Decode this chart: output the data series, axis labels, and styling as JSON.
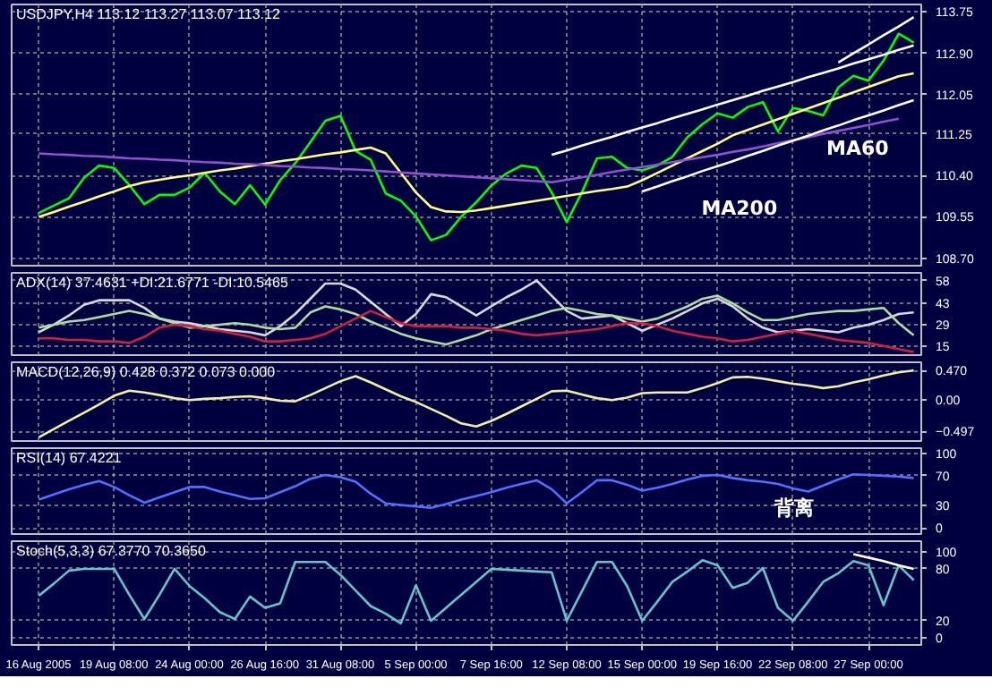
{
  "chart_data": [
    {
      "type": "line",
      "title": "USDJPY,H4 113.12 113.27 113.07 113.12",
      "ylim": [
        108.55,
        113.9
      ],
      "tick_labels": "y",
      "grid": true,
      "yticks": [
        {
          "value": 108.7,
          "label": "108.70"
        },
        109.55,
        {
          "value": 110.4,
          "label": "110.40"
        },
        111.25,
        112.05,
        {
          "value": 112.9,
          "label": "112.90"
        },
        113.75
      ],
      "series": [
        {
          "color": "#00ff00",
          "values": [
            109.63,
            109.78,
            109.93,
            110.35,
            110.6,
            110.55,
            110.2,
            109.81,
            110.0,
            110.0,
            110.15,
            110.45,
            110.07,
            109.81,
            110.2,
            109.8,
            110.3,
            110.65,
            111.08,
            111.52,
            111.62,
            110.9,
            110.72,
            110.03,
            109.88,
            109.56,
            109.07,
            109.18,
            109.55,
            109.85,
            110.19,
            110.44,
            110.6,
            110.55,
            110.05,
            109.44,
            110.05,
            110.75,
            110.78,
            110.55,
            110.5,
            110.6,
            110.78,
            111.18,
            111.45,
            111.67,
            111.58,
            111.8,
            111.9,
            111.3,
            111.78,
            111.72,
            111.63,
            112.2,
            112.44,
            112.34,
            112.75,
            113.3,
            113.12
          ]
        },
        {
          "color": "#ffff80",
          "values": [
            109.55,
            109.65,
            109.76,
            109.86,
            109.97,
            110.07,
            110.18,
            110.26,
            110.31,
            110.36,
            110.4,
            110.45,
            110.5,
            110.54,
            110.59,
            110.64,
            110.69,
            110.73,
            110.78,
            110.83,
            110.87,
            110.92,
            110.97,
            110.85,
            110.45,
            110.05,
            109.75,
            109.66,
            109.65,
            109.68,
            109.73,
            109.78,
            109.83,
            109.88,
            109.93,
            109.98,
            110.03,
            110.08,
            110.12,
            110.17,
            110.3,
            110.45,
            110.6,
            110.75,
            110.9,
            111.05,
            111.22,
            111.33,
            111.44,
            111.55,
            111.66,
            111.77,
            111.88,
            111.99,
            112.1,
            112.21,
            112.32,
            112.43,
            112.49
          ]
        },
        {
          "color": "#9050d0",
          "values": [
            110.85,
            110.83,
            110.82,
            110.8,
            110.79,
            110.77,
            110.75,
            110.74,
            110.72,
            110.71,
            110.69,
            110.67,
            110.66,
            110.64,
            110.63,
            110.61,
            110.59,
            110.58,
            110.56,
            110.55,
            110.53,
            110.52,
            110.5,
            110.48,
            110.46,
            110.44,
            110.42,
            110.4,
            110.38,
            110.36,
            110.34,
            110.32,
            110.3,
            110.28,
            110.26,
            110.31,
            110.36,
            110.41,
            110.47,
            110.52,
            110.57,
            110.62,
            110.67,
            110.72,
            110.77,
            110.82,
            110.88,
            110.93,
            110.99,
            111.06,
            111.12,
            111.18,
            111.25,
            111.31,
            111.37,
            111.43,
            111.5,
            111.56,
            null
          ]
        },
        {
          "color": "#ffffff",
          "values": [
            null,
            null,
            null,
            null,
            null,
            null,
            null,
            null,
            null,
            null,
            null,
            null,
            null,
            null,
            null,
            null,
            null,
            null,
            null,
            null,
            null,
            null,
            null,
            null,
            null,
            null,
            null,
            null,
            null,
            null,
            null,
            null,
            null,
            null,
            110.82,
            110.91,
            111.01,
            111.1,
            111.19,
            111.29,
            111.38,
            111.47,
            111.57,
            111.66,
            111.75,
            111.85,
            111.94,
            112.03,
            112.13,
            112.22,
            112.31,
            112.41,
            112.5,
            112.59,
            112.69,
            112.78,
            112.87,
            112.97,
            113.06
          ]
        },
        {
          "color": "#ffffff",
          "values": [
            null,
            null,
            null,
            null,
            null,
            null,
            null,
            null,
            null,
            null,
            null,
            null,
            null,
            null,
            null,
            null,
            null,
            null,
            null,
            null,
            null,
            null,
            null,
            null,
            null,
            null,
            null,
            null,
            null,
            null,
            null,
            null,
            null,
            null,
            null,
            null,
            null,
            null,
            null,
            null,
            110.07,
            110.17,
            110.28,
            110.38,
            110.49,
            110.59,
            110.69,
            110.8,
            110.9,
            111.01,
            111.11,
            111.21,
            111.32,
            111.42,
            111.53,
            111.63,
            111.73,
            111.84,
            111.94
          ]
        },
        {
          "color": "#ffffff",
          "values": [
            null,
            null,
            null,
            null,
            null,
            null,
            null,
            null,
            null,
            null,
            null,
            null,
            null,
            null,
            null,
            null,
            null,
            null,
            null,
            null,
            null,
            null,
            null,
            null,
            null,
            null,
            null,
            null,
            null,
            null,
            null,
            null,
            null,
            null,
            null,
            null,
            null,
            null,
            null,
            null,
            null,
            null,
            null,
            null,
            null,
            null,
            null,
            null,
            null,
            null,
            null,
            null,
            null,
            112.71,
            112.9,
            113.08,
            113.27,
            113.45,
            113.64
          ]
        }
      ],
      "annotations": [
        "MA200",
        "MA60"
      ]
    },
    {
      "type": "line",
      "title": "ADX(14) 37.4631 +DI:21.6771 -DI:10.5465",
      "ylim": [
        9,
        63
      ],
      "tick_labels": "y",
      "grid": true,
      "yticks": [
        15,
        29,
        43,
        58
      ],
      "series": [
        {
          "color": "#d8d8d8",
          "values": [
            24,
            29,
            35,
            42,
            45,
            45,
            45,
            40,
            33,
            31,
            30,
            28,
            26,
            25,
            24,
            22,
            28,
            36,
            46,
            56,
            56,
            52,
            44,
            36,
            28,
            36,
            49,
            47,
            41,
            35,
            41,
            47,
            52,
            58,
            48,
            38,
            33,
            34,
            35,
            30,
            25,
            29,
            33,
            38,
            43,
            46,
            41,
            33,
            27,
            24,
            25,
            26,
            25,
            24,
            27,
            29,
            32,
            36,
            37
          ]
        },
        {
          "color": "#a8e0a0",
          "values": [
            27,
            29,
            31,
            32,
            34,
            36,
            38,
            36,
            33,
            30,
            27,
            28,
            29,
            30,
            29,
            27,
            26,
            27,
            37,
            41,
            39,
            36,
            31,
            27,
            23,
            20,
            18,
            16,
            19,
            22,
            26,
            29,
            32,
            35,
            38,
            40,
            38,
            36,
            35,
            33,
            31,
            33,
            37,
            41,
            46,
            48,
            43,
            37,
            32,
            32,
            34,
            36,
            37,
            38,
            38,
            39,
            40,
            30,
            22
          ]
        },
        {
          "color": "#d02040",
          "values": [
            20,
            20,
            19,
            19,
            18,
            18,
            17,
            21,
            27,
            29,
            28,
            26,
            25,
            23,
            21,
            18,
            18,
            19,
            20,
            23,
            28,
            33,
            38,
            34,
            30,
            28,
            28,
            28,
            27,
            27,
            26,
            25,
            23,
            22,
            23,
            24,
            25,
            26,
            28,
            30,
            30,
            28,
            25,
            23,
            21,
            20,
            18,
            19,
            21,
            23,
            25,
            23,
            21,
            19,
            18,
            17,
            15,
            13,
            11
          ]
        }
      ]
    },
    {
      "type": "line",
      "title": "MACD(12,26,9) 0.428 0.372 0.073 0.000",
      "ylim": [
        -0.65,
        0.6
      ],
      "tick_labels": "y",
      "grid": true,
      "yticks": [
        {
          "value": 0.47,
          "label": "0.470"
        },
        {
          "value": 0,
          "label": "0.00"
        },
        -0.497
      ],
      "series": [
        {
          "color": "#f0f0a0",
          "values": [
            -0.59,
            -0.46,
            -0.33,
            -0.2,
            -0.07,
            0.07,
            0.15,
            0.12,
            0.08,
            0.03,
            0.0,
            0.02,
            0.03,
            0.05,
            0.06,
            0.03,
            -0.01,
            -0.02,
            0.08,
            0.19,
            0.3,
            0.38,
            0.28,
            0.17,
            0.06,
            -0.03,
            -0.14,
            -0.25,
            -0.37,
            -0.42,
            -0.33,
            -0.22,
            -0.1,
            0.02,
            0.14,
            0.15,
            0.09,
            0.03,
            0.0,
            0.04,
            0.11,
            0.12,
            0.12,
            0.12,
            0.19,
            0.27,
            0.36,
            0.37,
            0.34,
            0.3,
            0.26,
            0.23,
            0.19,
            0.22,
            0.28,
            0.33,
            0.39,
            0.44,
            0.47
          ]
        }
      ]
    },
    {
      "type": "line",
      "title": "RSI(14) 67.4221",
      "ylim": [
        -8,
        107
      ],
      "tick_labels": "y",
      "grid": true,
      "yticks": [
        100,
        70,
        30,
        0
      ],
      "series": [
        {
          "color": "#5070ff",
          "values": [
            38,
            45,
            52,
            58,
            63,
            55,
            44,
            34,
            41,
            48,
            55,
            55,
            49,
            44,
            39,
            40,
            48,
            56,
            66,
            71,
            68,
            62,
            46,
            33,
            31,
            29,
            27,
            32,
            38,
            43,
            48,
            54,
            59,
            64,
            52,
            33,
            48,
            64,
            64,
            58,
            50,
            54,
            59,
            65,
            70,
            71,
            67,
            64,
            62,
            59,
            53,
            49,
            57,
            65,
            72,
            71,
            70,
            69,
            67
          ]
        }
      ],
      "annotations": [
        "背离"
      ]
    },
    {
      "type": "line",
      "title": "Stoch(5,3,3) 67.3770 70.3650",
      "ylim": [
        -8,
        112
      ],
      "grid": true,
      "categories": [
        "16 Aug 2005",
        null,
        null,
        null,
        null,
        "19 Aug 08:00",
        null,
        null,
        null,
        null,
        "24 Aug 00:00",
        null,
        null,
        null,
        null,
        "26 Aug 16:00",
        null,
        null,
        null,
        null,
        "31 Aug 08:00",
        null,
        null,
        null,
        null,
        "5 Sep 00:00",
        null,
        null,
        null,
        null,
        "7 Sep 16:00",
        null,
        null,
        null,
        null,
        "12 Sep 08:00",
        null,
        null,
        null,
        null,
        "15 Sep 00:00",
        null,
        null,
        null,
        null,
        "19 Sep 16:00",
        null,
        null,
        null,
        null,
        "22 Sep 08:00",
        null,
        null,
        null,
        null,
        "27 Sep 00:00",
        null,
        null,
        null
      ],
      "yticks": [
        100,
        80,
        20,
        0
      ],
      "series": [
        {
          "color": "#60c8c8",
          "values": [
            49,
            63,
            78,
            80,
            80,
            80,
            50,
            22,
            50,
            80,
            60,
            46,
            30,
            22,
            48,
            35,
            40,
            88,
            88,
            88,
            73,
            55,
            37,
            28,
            17,
            61,
            20,
            35,
            50,
            65,
            80,
            79,
            78,
            77,
            76,
            20,
            54,
            88,
            88,
            60,
            20,
            42,
            65,
            77,
            90,
            84,
            58,
            64,
            81,
            35,
            20,
            42,
            65,
            75,
            89,
            84,
            38,
            84,
            67
          ]
        },
        {
          "color": "#ffffff",
          "values": [
            null,
            null,
            null,
            null,
            null,
            null,
            null,
            null,
            null,
            null,
            null,
            null,
            null,
            null,
            null,
            null,
            null,
            null,
            null,
            null,
            null,
            null,
            null,
            null,
            null,
            null,
            null,
            null,
            null,
            null,
            null,
            null,
            null,
            null,
            null,
            null,
            null,
            null,
            null,
            null,
            null,
            null,
            null,
            null,
            null,
            null,
            null,
            null,
            null,
            null,
            null,
            null,
            null,
            null,
            97,
            93,
            89,
            84,
            80
          ]
        }
      ]
    }
  ]
}
